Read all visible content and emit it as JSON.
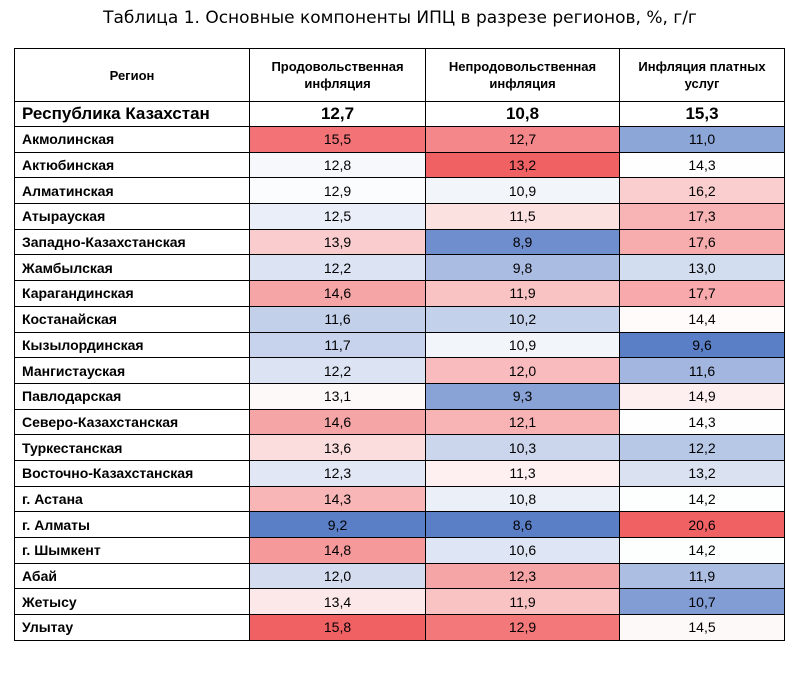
{
  "chart_data": {
    "type": "table",
    "title": "Таблица 1. Основные компоненты ИПЦ в разрезе регионов, %, г/г",
    "columns": [
      "Регион",
      "Продовольственная инфляция",
      "Непродовольственная инфляция",
      "Инфляция платных услуг"
    ],
    "total": {
      "region": "Республика Казахстан",
      "values": [
        "12,7",
        "10,8",
        "15,3"
      ]
    },
    "rows": [
      {
        "region": "Акмолинская",
        "values": [
          "15,5",
          "12,7",
          "11,0"
        ]
      },
      {
        "region": "Актюбинская",
        "values": [
          "12,8",
          "13,2",
          "14,3"
        ]
      },
      {
        "region": "Алматинская",
        "values": [
          "12,9",
          "10,9",
          "16,2"
        ]
      },
      {
        "region": "Атырауская",
        "values": [
          "12,5",
          "11,5",
          "17,3"
        ]
      },
      {
        "region": "Западно-Казахстанская",
        "values": [
          "13,9",
          "8,9",
          "17,6"
        ]
      },
      {
        "region": "Жамбылская",
        "values": [
          "12,2",
          "9,8",
          "13,0"
        ]
      },
      {
        "region": "Карагандинская",
        "values": [
          "14,6",
          "11,9",
          "17,7"
        ]
      },
      {
        "region": "Костанайская",
        "values": [
          "11,6",
          "10,2",
          "14,4"
        ]
      },
      {
        "region": "Кызылординская",
        "values": [
          "11,7",
          "10,9",
          "9,6"
        ]
      },
      {
        "region": "Мангистауская",
        "values": [
          "12,2",
          "12,0",
          "11,6"
        ]
      },
      {
        "region": "Павлодарская",
        "values": [
          "13,1",
          "9,3",
          "14,9"
        ]
      },
      {
        "region": "Северо-Казахстанская",
        "values": [
          "14,6",
          "12,1",
          "14,3"
        ]
      },
      {
        "region": "Туркестанская",
        "values": [
          "13,6",
          "10,3",
          "12,2"
        ]
      },
      {
        "region": "Восточно-Казахстанская",
        "values": [
          "12,3",
          "11,3",
          "13,2"
        ]
      },
      {
        "region": "г. Астана",
        "values": [
          "14,3",
          "10,8",
          "14,2"
        ]
      },
      {
        "region": "г. Алматы",
        "values": [
          "9,2",
          "8,6",
          "20,6"
        ]
      },
      {
        "region": "г. Шымкент",
        "values": [
          "14,8",
          "10,6",
          "14,2"
        ]
      },
      {
        "region": "Абай",
        "values": [
          "12,0",
          "12,3",
          "11,9"
        ]
      },
      {
        "region": "Жетысу",
        "values": [
          "13,4",
          "11,9",
          "10,7"
        ]
      },
      {
        "region": "Улытау",
        "values": [
          "15,8",
          "12,9",
          "14,5"
        ]
      }
    ]
  },
  "colors": {
    "low": "#5b7fc6",
    "mid": "#ffffff",
    "high": "#f06164"
  }
}
